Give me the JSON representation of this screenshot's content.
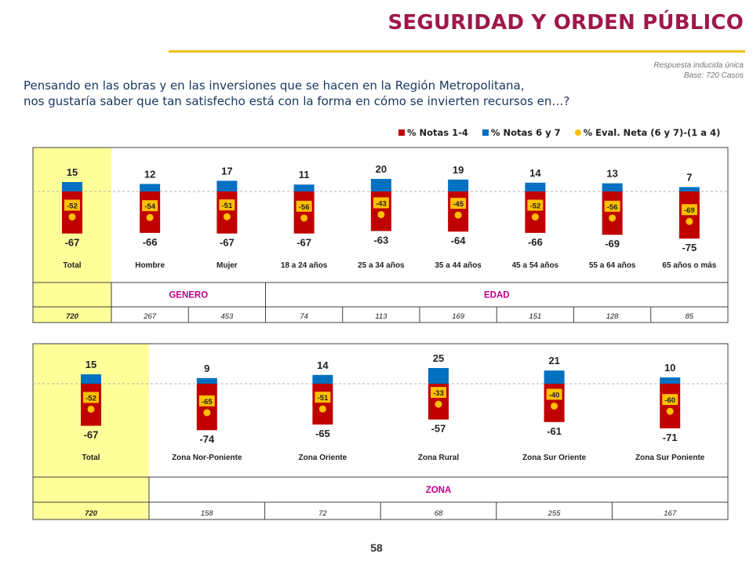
{
  "header": {
    "title": "SEGURIDAD Y ORDEN PÚBLICO",
    "response_type": "Respuesta inducida única",
    "base": "Base: 720 Casos"
  },
  "question": {
    "line1": "Pensando en las obras y en las inversiones que se hacen en la Región Metropolitana,",
    "line2": "nos gustaría saber que tan satisfecho está con la forma en cómo se invierten recursos en…?"
  },
  "legend": [
    {
      "label": "% Notas 1-4",
      "color": "#c00000",
      "shape": "square"
    },
    {
      "label": "% Notas 6 y 7",
      "color": "#0070c0",
      "shape": "square"
    },
    {
      "label": "% Eval. Neta (6 y 7)-(1 a 4)",
      "color": "#ffc000",
      "shape": "circle"
    }
  ],
  "colors": {
    "negative": "#c00000",
    "positive": "#0070c0",
    "net": "#ffc000",
    "total_bg": "#ffff99",
    "group_label": "#c0008c"
  },
  "chart_data": [
    {
      "type": "bar",
      "categories": [
        "Total",
        "Hombre",
        "Mujer",
        "18 a 24 años",
        "25 a 34 años",
        "35 a 44 años",
        "45 a 54 años",
        "55 a 64 años",
        "65 años o más"
      ],
      "series": [
        {
          "name": "% Notas 1-4",
          "values": [
            -67,
            -66,
            -67,
            -67,
            -63,
            -64,
            -66,
            -69,
            -75
          ]
        },
        {
          "name": "% Notas 6 y 7",
          "values": [
            15,
            12,
            17,
            11,
            20,
            19,
            14,
            13,
            7
          ]
        },
        {
          "name": "% Eval. Neta (6 y 7)-(1 a 4)",
          "values": [
            -52,
            -54,
            -51,
            -56,
            -43,
            -45,
            -52,
            -56,
            -69
          ]
        }
      ],
      "groups": [
        {
          "label": "",
          "span": 1
        },
        {
          "label": "GENERO",
          "span": 2
        },
        {
          "label": "EDAD",
          "span": 6
        }
      ],
      "bases": [
        "720",
        "267",
        "453",
        "74",
        "113",
        "169",
        "151",
        "128",
        "85"
      ]
    },
    {
      "type": "bar",
      "categories": [
        "Total",
        "Zona Nor-Poniente",
        "Zona Oriente",
        "Zona Rural",
        "Zona Sur Oriente",
        "Zona Sur Poniente"
      ],
      "series": [
        {
          "name": "% Notas 1-4",
          "values": [
            -67,
            -74,
            -65,
            -57,
            -61,
            -71
          ]
        },
        {
          "name": "% Notas 6 y 7",
          "values": [
            15,
            9,
            14,
            25,
            21,
            10
          ]
        },
        {
          "name": "% Eval. Neta (6 y 7)-(1 a 4)",
          "values": [
            -52,
            -65,
            -51,
            -33,
            -40,
            -60
          ]
        }
      ],
      "groups": [
        {
          "label": "",
          "span": 1
        },
        {
          "label": "ZONA",
          "span": 5
        }
      ],
      "bases": [
        "720",
        "158",
        "72",
        "68",
        "255",
        "167"
      ]
    }
  ],
  "page_number": "58"
}
